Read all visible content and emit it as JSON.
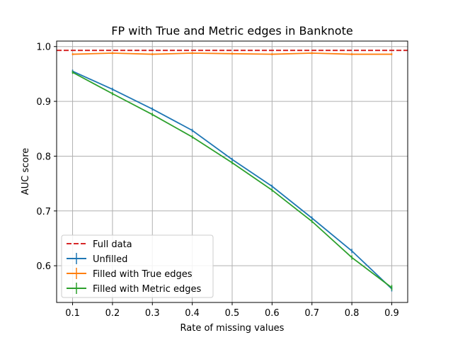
{
  "chart_data": {
    "type": "line",
    "title": "FP with True and Metric edges in Banknote",
    "xlabel": "Rate of missing values",
    "ylabel": "AUC score",
    "x": [
      0.1,
      0.2,
      0.3,
      0.4,
      0.5,
      0.6,
      0.7,
      0.8,
      0.9
    ],
    "xticks": [
      "0.1",
      "0.2",
      "0.3",
      "0.4",
      "0.5",
      "0.6",
      "0.7",
      "0.8",
      "0.9"
    ],
    "yticks": [
      "0.6",
      "0.7",
      "0.8",
      "0.9",
      "1.0"
    ],
    "xlim": [
      0.06,
      0.94
    ],
    "ylim": [
      0.533,
      1.01
    ],
    "grid": true,
    "legend_position": "lower-left",
    "reference_line": {
      "name": "Full data",
      "y": 0.993,
      "color": "#d62728",
      "style": "dashed"
    },
    "series": [
      {
        "name": "Unfilled",
        "color": "#1f77b4",
        "values": [
          0.955,
          0.922,
          0.886,
          0.847,
          0.794,
          0.745,
          0.687,
          0.627,
          0.558
        ],
        "errors": [
          0.003,
          0.003,
          0.003,
          0.003,
          0.003,
          0.003,
          0.003,
          0.004,
          0.005
        ]
      },
      {
        "name": "Filled with True edges",
        "color": "#ff7f0e",
        "values": [
          0.986,
          0.988,
          0.986,
          0.988,
          0.987,
          0.986,
          0.988,
          0.986,
          0.986
        ],
        "errors": [
          0.002,
          0.002,
          0.002,
          0.002,
          0.002,
          0.002,
          0.002,
          0.002,
          0.002
        ]
      },
      {
        "name": "Filled with Metric edges",
        "color": "#2ca02c",
        "values": [
          0.953,
          0.914,
          0.876,
          0.835,
          0.788,
          0.738,
          0.681,
          0.615,
          0.56
        ],
        "errors": [
          0.003,
          0.003,
          0.003,
          0.003,
          0.003,
          0.003,
          0.003,
          0.004,
          0.005
        ]
      }
    ]
  }
}
